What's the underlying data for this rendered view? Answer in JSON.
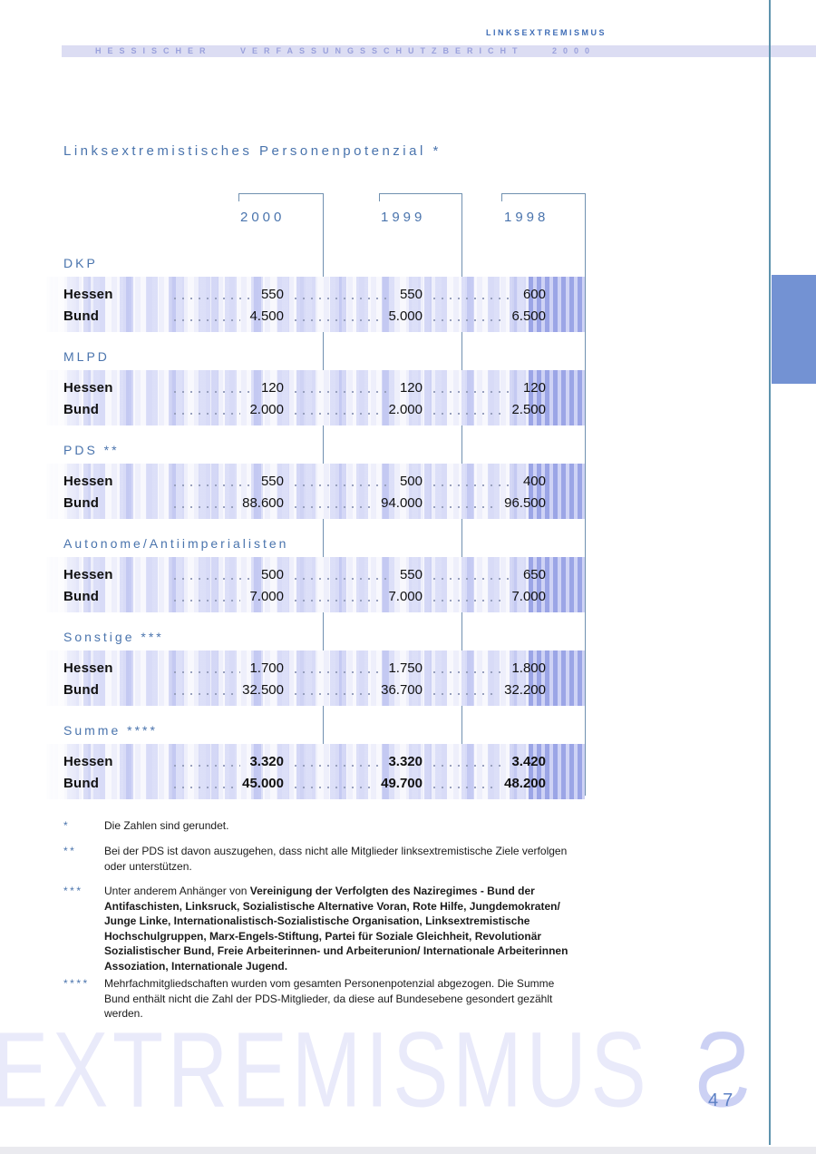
{
  "header": {
    "category": "LINKSEXTREMISMUS",
    "band_title": "HESSISCHER VERFASSUNGSSCHUTZBERICHT 2000",
    "page_number": "47"
  },
  "table": {
    "title": "Linksextremistisches Personenpotenzial *",
    "years": [
      "2000",
      "1999",
      "1998"
    ],
    "sections": [
      {
        "name": "DKP",
        "emphasis": false,
        "rows": [
          {
            "label": "Hessen",
            "values": [
              "550",
              "550",
              "600"
            ]
          },
          {
            "label": "Bund",
            "values": [
              "4.500",
              "5.000",
              "6.500"
            ]
          }
        ]
      },
      {
        "name": "MLPD",
        "emphasis": false,
        "rows": [
          {
            "label": "Hessen",
            "values": [
              "120",
              "120",
              "120"
            ]
          },
          {
            "label": "Bund",
            "values": [
              "2.000",
              "2.000",
              "2.500"
            ]
          }
        ]
      },
      {
        "name": "PDS **",
        "emphasis": false,
        "rows": [
          {
            "label": "Hessen",
            "values": [
              "550",
              "500",
              "400"
            ]
          },
          {
            "label": "Bund",
            "values": [
              "88.600",
              "94.000",
              "96.500"
            ]
          }
        ]
      },
      {
        "name": "Autonome/Antiimperialisten",
        "emphasis": false,
        "rows": [
          {
            "label": "Hessen",
            "values": [
              "500",
              "550",
              "650"
            ]
          },
          {
            "label": "Bund",
            "values": [
              "7.000",
              "7.000",
              "7.000"
            ]
          }
        ]
      },
      {
        "name": "Sonstige ***",
        "emphasis": false,
        "rows": [
          {
            "label": "Hessen",
            "values": [
              "1.700",
              "1.750",
              "1.800"
            ]
          },
          {
            "label": "Bund",
            "values": [
              "32.500",
              "36.700",
              "32.200"
            ]
          }
        ]
      },
      {
        "name": "Summe ****",
        "emphasis": true,
        "rows": [
          {
            "label": "Hessen",
            "values": [
              "3.320",
              "3.320",
              "3.420"
            ]
          },
          {
            "label": "Bund",
            "values": [
              "45.000",
              "49.700",
              "48.200"
            ]
          }
        ]
      }
    ]
  },
  "footnotes": [
    {
      "marker": "*",
      "text": "Die Zahlen sind gerundet.",
      "bold_text": ""
    },
    {
      "marker": "**",
      "text": "Bei der PDS ist davon auszugehen, dass nicht alle Mitglieder linksextremistische Ziele verfolgen oder unterstützen.",
      "bold_text": ""
    },
    {
      "marker": "***",
      "text": "Unter anderem Anhänger von ",
      "bold_text": "Vereinigung der Verfolgten des Naziregimes - Bund der Antifaschisten, Linksruck, Sozialistische Alternative Voran, Rote Hilfe, Jungdemokraten/ Junge Linke, Internationalistisch-Sozialistische Organisation, Linksextremistische Hochschulgruppen, Marx-Engels-Stiftung, Partei für Soziale Gleichheit, Revolutionär Sozialistischer Bund, Freie Arbeiterinnen- und Arbeiterunion/ Internationale Arbeiterinnen Assoziation, Internationale Jugend."
    },
    {
      "marker": "****",
      "text": "Mehrfachmitgliedschaften wurden vom gesamten Personenpotenzial abgezogen. Die Summe Bund enthält nicht die Zahl der PDS-Mitglieder, da diese auf Bundesebene gesondert gezählt werden.",
      "bold_text": ""
    }
  ],
  "watermark": {
    "text": "EXTREMISMUS",
    "mirrored_text": "SMUS"
  },
  "colors": {
    "accent_blue": "#4a74ad",
    "band_background": "#dcddf3",
    "band_text": "#9aa1dc",
    "category_text": "#3f6db6",
    "rule_line": "#7090b0",
    "page_line": "#5e93ad",
    "side_tab": "#7392d3",
    "stripe_dark": "#9ba5e6",
    "stripe_light": "#eeeffb",
    "watermark_light": "#e9eafa",
    "watermark_mirror": "#ccd1f4",
    "page_number": "#5c80c4"
  }
}
